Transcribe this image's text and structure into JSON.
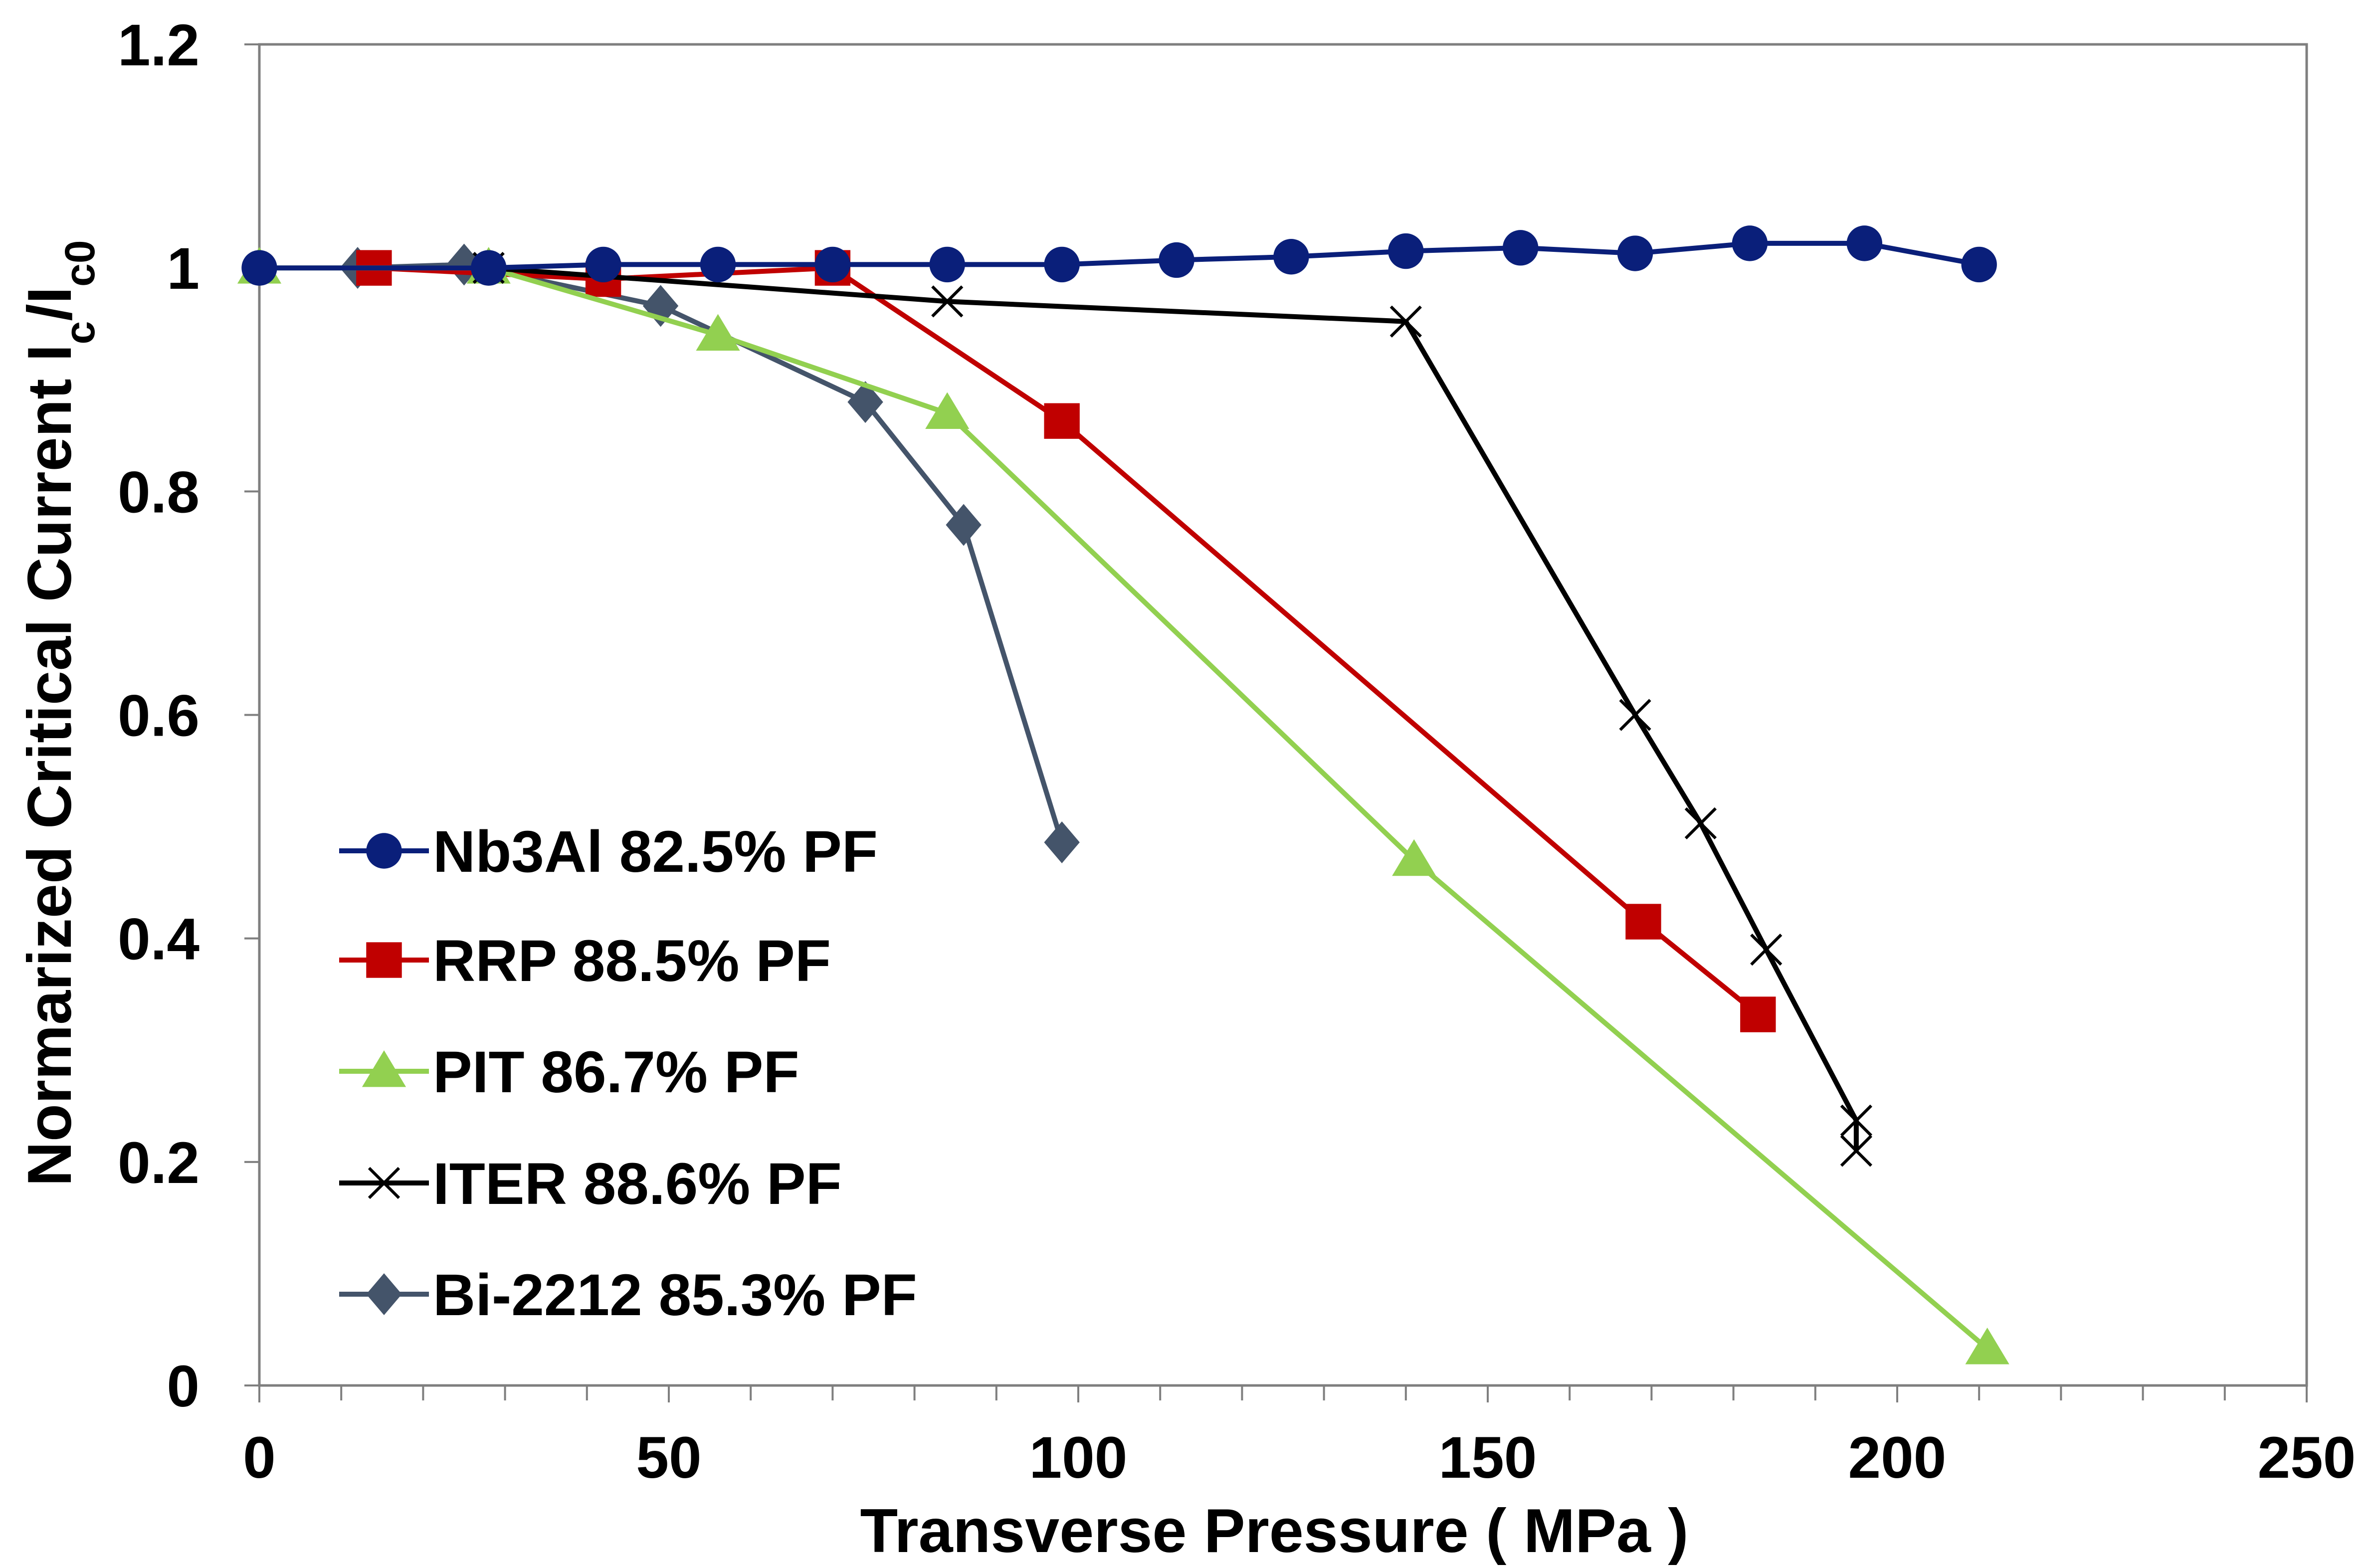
{
  "chart_data": {
    "type": "line",
    "title": "",
    "xlabel": "Transverse Pressure ( MPa )",
    "ylabel": {
      "prefix": "Normarized Critical Current I",
      "sub1": "c",
      "mid": "/I",
      "sub2": "c0"
    },
    "xlim": [
      0,
      250
    ],
    "ylim": [
      0,
      1.2
    ],
    "x_ticks": [
      "0",
      "50",
      "100",
      "150",
      "200",
      "250"
    ],
    "y_ticks": [
      "0",
      "0.2",
      "0.4",
      "0.6",
      "0.8",
      "1",
      "1.2"
    ],
    "grid": false,
    "legend_position": "left-center",
    "series": [
      {
        "name": "Nb3Al 82.5% PF",
        "color": "#0a1f7a",
        "marker": "circle",
        "points": [
          [
            0,
            1.0
          ],
          [
            28,
            1.0
          ],
          [
            42,
            1.003
          ],
          [
            56,
            1.003
          ],
          [
            70,
            1.003
          ],
          [
            84,
            1.003
          ],
          [
            98,
            1.003
          ],
          [
            112,
            1.007
          ],
          [
            126,
            1.01
          ],
          [
            140,
            1.015
          ],
          [
            154,
            1.018
          ],
          [
            168,
            1.013
          ],
          [
            182,
            1.022
          ],
          [
            196,
            1.022
          ],
          [
            210,
            1.003
          ]
        ]
      },
      {
        "name": "RRP 88.5% PF",
        "color": "#c00000",
        "marker": "square",
        "points": [
          [
            14,
            1.0
          ],
          [
            42,
            0.99
          ],
          [
            70,
            1.0
          ],
          [
            98,
            0.863
          ],
          [
            169,
            0.415
          ],
          [
            183,
            0.332
          ]
        ]
      },
      {
        "name": "PIT 86.7% PF",
        "color": "#92d050",
        "marker": "triangle",
        "points": [
          [
            0,
            1.0
          ],
          [
            28,
            1.0
          ],
          [
            56,
            0.94
          ],
          [
            84,
            0.87
          ],
          [
            141,
            0.47
          ],
          [
            211,
            0.033
          ]
        ]
      },
      {
        "name": "ITER 88.6% PF",
        "color": "#000000",
        "marker": "x",
        "points": [
          [
            28,
            1.0
          ],
          [
            84,
            0.97
          ],
          [
            140,
            0.952
          ],
          [
            168,
            0.6
          ],
          [
            176,
            0.503
          ],
          [
            184,
            0.39
          ],
          [
            195,
            0.237
          ],
          [
            195,
            0.21
          ]
        ]
      },
      {
        "name": "Bi-2212 85.3% PF",
        "color": "#44546a",
        "marker": "diamond",
        "points": [
          [
            12,
            1.0
          ],
          [
            25,
            1.003
          ],
          [
            49,
            0.966
          ],
          [
            74,
            0.88
          ],
          [
            86,
            0.77
          ],
          [
            98,
            0.486
          ]
        ]
      }
    ]
  }
}
